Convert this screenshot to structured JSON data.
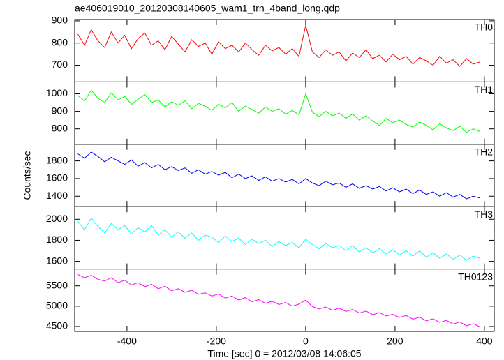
{
  "chart_data": [
    {
      "type": "line",
      "title": "ae406019010_20120308140605_wam1_trn_4band_long.qdp",
      "name": "TH0",
      "color": "#ff0000",
      "xlim": [
        -517,
        422
      ],
      "xticks": [
        -400,
        -200,
        0,
        200,
        400
      ],
      "ylim": [
        625,
        906
      ],
      "yticks": [
        700,
        800,
        900
      ],
      "x": [
        -510,
        -495,
        -480,
        -465,
        -450,
        -435,
        -420,
        -405,
        -390,
        -375,
        -360,
        -345,
        -330,
        -315,
        -300,
        -285,
        -270,
        -255,
        -240,
        -225,
        -210,
        -195,
        -180,
        -165,
        -150,
        -135,
        -120,
        -105,
        -90,
        -75,
        -60,
        -45,
        -30,
        -15,
        0,
        15,
        30,
        45,
        60,
        75,
        90,
        105,
        120,
        135,
        150,
        165,
        180,
        195,
        210,
        225,
        240,
        255,
        270,
        285,
        300,
        315,
        330,
        345,
        360,
        375,
        390
      ],
      "values": [
        840,
        790,
        860,
        810,
        780,
        850,
        800,
        835,
        775,
        820,
        845,
        790,
        810,
        770,
        830,
        795,
        760,
        815,
        785,
        800,
        750,
        805,
        775,
        790,
        760,
        800,
        770,
        745,
        790,
        765,
        780,
        750,
        775,
        740,
        880,
        760,
        735,
        770,
        745,
        760,
        720,
        755,
        735,
        770,
        730,
        745,
        715,
        750,
        725,
        740,
        705,
        735,
        720,
        700,
        740,
        710,
        725,
        695,
        730,
        705,
        715
      ]
    },
    {
      "type": "line",
      "name": "TH1",
      "color": "#00ff00",
      "xlim": [
        -517,
        422
      ],
      "xticks": [
        -400,
        -200,
        0,
        200,
        400
      ],
      "ylim": [
        712,
        1068
      ],
      "yticks": [
        800,
        900,
        1000
      ],
      "x": [
        -510,
        -495,
        -480,
        -465,
        -450,
        -435,
        -420,
        -405,
        -390,
        -375,
        -360,
        -345,
        -330,
        -315,
        -300,
        -285,
        -270,
        -255,
        -240,
        -225,
        -210,
        -195,
        -180,
        -165,
        -150,
        -135,
        -120,
        -105,
        -90,
        -75,
        -60,
        -45,
        -30,
        -15,
        0,
        15,
        30,
        45,
        60,
        75,
        90,
        105,
        120,
        135,
        150,
        165,
        180,
        195,
        210,
        225,
        240,
        255,
        270,
        285,
        300,
        315,
        330,
        345,
        360,
        375,
        390
      ],
      "values": [
        990,
        960,
        1020,
        975,
        950,
        1005,
        965,
        985,
        940,
        970,
        995,
        950,
        965,
        925,
        955,
        935,
        960,
        915,
        945,
        930,
        905,
        940,
        920,
        950,
        900,
        930,
        910,
        890,
        925,
        900,
        915,
        885,
        905,
        880,
        1000,
        895,
        870,
        900,
        875,
        890,
        860,
        885,
        850,
        875,
        845,
        820,
        860,
        835,
        850,
        825,
        810,
        840,
        820,
        795,
        830,
        805,
        790,
        815,
        780,
        800,
        785
      ]
    },
    {
      "type": "line",
      "name": "TH2",
      "color": "#0000ff",
      "ylabel": "Counts/sec",
      "xlim": [
        -517,
        422
      ],
      "xticks": [
        -400,
        -200,
        0,
        200,
        400
      ],
      "ylim": [
        1282,
        1988
      ],
      "yticks": [
        1400,
        1600,
        1800
      ],
      "x": [
        -510,
        -495,
        -480,
        -465,
        -450,
        -435,
        -420,
        -405,
        -390,
        -375,
        -360,
        -345,
        -330,
        -315,
        -300,
        -285,
        -270,
        -255,
        -240,
        -225,
        -210,
        -195,
        -180,
        -165,
        -150,
        -135,
        -120,
        -105,
        -90,
        -75,
        -60,
        -45,
        -30,
        -15,
        0,
        15,
        30,
        45,
        60,
        75,
        90,
        105,
        120,
        135,
        150,
        165,
        180,
        195,
        210,
        225,
        240,
        255,
        270,
        285,
        300,
        315,
        330,
        345,
        360,
        375,
        390
      ],
      "values": [
        1880,
        1830,
        1900,
        1850,
        1790,
        1840,
        1800,
        1760,
        1810,
        1740,
        1780,
        1720,
        1760,
        1700,
        1735,
        1690,
        1720,
        1660,
        1700,
        1650,
        1680,
        1640,
        1670,
        1610,
        1650,
        1600,
        1630,
        1580,
        1620,
        1570,
        1600,
        1560,
        1590,
        1540,
        1600,
        1550,
        1520,
        1570,
        1530,
        1550,
        1500,
        1540,
        1490,
        1520,
        1480,
        1510,
        1460,
        1495,
        1450,
        1480,
        1430,
        1470,
        1420,
        1450,
        1400,
        1440,
        1390,
        1420,
        1370,
        1400,
        1380
      ]
    },
    {
      "type": "line",
      "name": "TH3",
      "color": "#00ffff",
      "xlim": [
        -517,
        422
      ],
      "xticks": [
        -400,
        -200,
        0,
        200,
        400
      ],
      "ylim": [
        1527,
        2120
      ],
      "yticks": [
        1600,
        1800,
        2000
      ],
      "x": [
        -510,
        -495,
        -480,
        -465,
        -450,
        -435,
        -420,
        -405,
        -390,
        -375,
        -360,
        -345,
        -330,
        -315,
        -300,
        -285,
        -270,
        -255,
        -240,
        -225,
        -210,
        -195,
        -180,
        -165,
        -150,
        -135,
        -120,
        -105,
        -90,
        -75,
        -60,
        -45,
        -30,
        -15,
        0,
        15,
        30,
        45,
        60,
        75,
        90,
        105,
        120,
        135,
        150,
        165,
        180,
        195,
        210,
        225,
        240,
        255,
        270,
        285,
        300,
        315,
        330,
        345,
        360,
        375,
        390
      ],
      "values": [
        1980,
        1900,
        2010,
        1930,
        1870,
        1960,
        1900,
        1940,
        1860,
        1920,
        1880,
        1940,
        1850,
        1900,
        1830,
        1880,
        1820,
        1870,
        1800,
        1850,
        1830,
        1780,
        1840,
        1790,
        1820,
        1760,
        1810,
        1770,
        1800,
        1740,
        1790,
        1750,
        1780,
        1730,
        1810,
        1760,
        1720,
        1770,
        1730,
        1750,
        1700,
        1750,
        1690,
        1730,
        1680,
        1720,
        1670,
        1710,
        1660,
        1700,
        1650,
        1700,
        1640,
        1680,
        1630,
        1670,
        1620,
        1660,
        1610,
        1650,
        1630
      ]
    },
    {
      "type": "line",
      "name": "TH0123",
      "color": "#ff00ff",
      "xlabel": "Time [sec] 0 = 2012/03/08 14:06:05",
      "xlim": [
        -517,
        422
      ],
      "xticks": [
        -400,
        -200,
        0,
        200,
        400
      ],
      "ylim": [
        4379,
        5914
      ],
      "yticks": [
        4500,
        5000,
        5500
      ],
      "x": [
        -510,
        -495,
        -480,
        -465,
        -450,
        -435,
        -420,
        -405,
        -390,
        -375,
        -360,
        -345,
        -330,
        -315,
        -300,
        -285,
        -270,
        -255,
        -240,
        -225,
        -210,
        -195,
        -180,
        -165,
        -150,
        -135,
        -120,
        -105,
        -90,
        -75,
        -60,
        -45,
        -30,
        -15,
        0,
        15,
        30,
        45,
        60,
        75,
        90,
        105,
        120,
        135,
        150,
        165,
        180,
        195,
        210,
        225,
        240,
        255,
        270,
        285,
        300,
        315,
        330,
        345,
        360,
        375,
        390
      ],
      "values": [
        5780,
        5700,
        5760,
        5660,
        5620,
        5700,
        5580,
        5640,
        5520,
        5580,
        5480,
        5540,
        5430,
        5490,
        5380,
        5430,
        5340,
        5390,
        5290,
        5330,
        5250,
        5300,
        5200,
        5250,
        5150,
        5210,
        5110,
        5160,
        5070,
        5120,
        5040,
        5090,
        5000,
        5050,
        5150,
        4990,
        4930,
        4980,
        4900,
        4950,
        4870,
        4920,
        4830,
        4880,
        4790,
        4840,
        4760,
        4800,
        4720,
        4770,
        4680,
        4730,
        4640,
        4690,
        4600,
        4650,
        4560,
        4610,
        4520,
        4570,
        4490
      ]
    }
  ]
}
